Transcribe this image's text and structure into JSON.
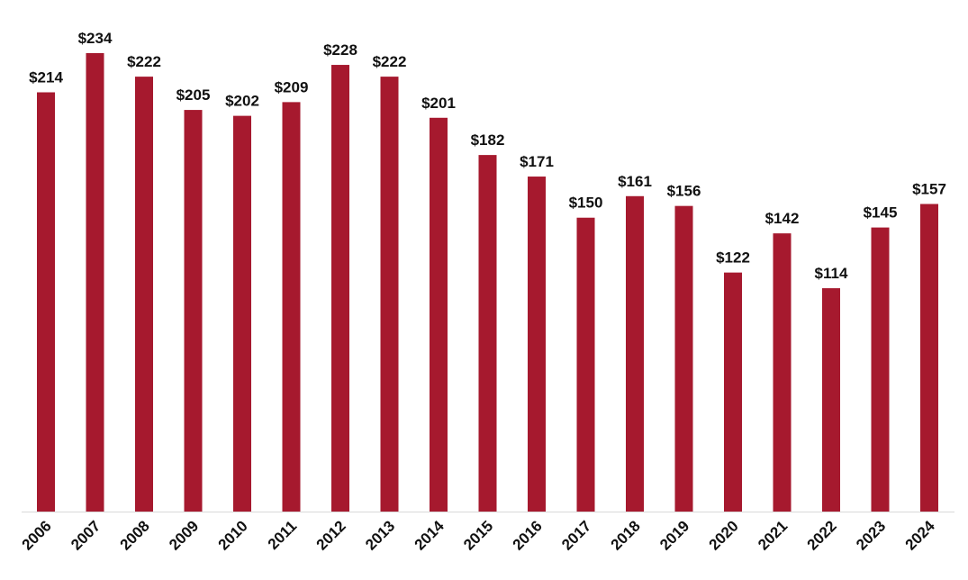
{
  "chart_data": {
    "type": "bar",
    "categories": [
      "2006",
      "2007",
      "2008",
      "2009",
      "2010",
      "2011",
      "2012",
      "2013",
      "2014",
      "2015",
      "2016",
      "2017",
      "2018",
      "2019",
      "2020",
      "2021",
      "2022",
      "2023",
      "2024"
    ],
    "values": [
      214,
      234,
      222,
      205,
      202,
      209,
      228,
      222,
      201,
      182,
      171,
      150,
      161,
      156,
      122,
      142,
      114,
      145,
      157
    ],
    "data_labels": [
      "$214",
      "$234",
      "$222",
      "$205",
      "$202",
      "$209",
      "$228",
      "$222",
      "$201",
      "$182",
      "$171",
      "$150",
      "$161",
      "$156",
      "$122",
      "$142",
      "$114",
      "$145",
      "$157"
    ],
    "title": "",
    "xlabel": "",
    "ylabel": "",
    "ylim": [
      0,
      240
    ],
    "grid": false,
    "legend": "none",
    "bar_color": "#A6192E",
    "baseline_color": "#D9D9D9",
    "label_color": "#111111"
  }
}
